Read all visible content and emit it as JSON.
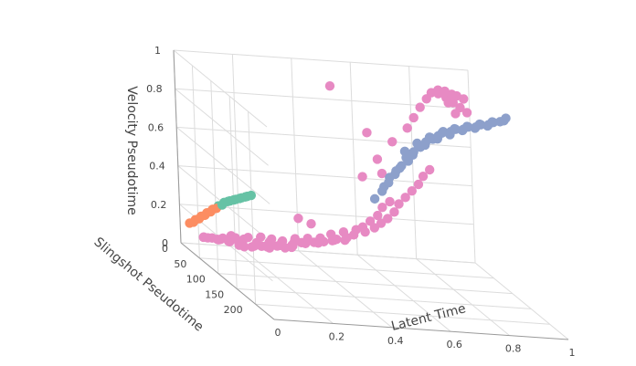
{
  "chart_data": {
    "type": "scatter3d",
    "title": "",
    "axes": {
      "x": {
        "label": "Latent Time",
        "range": [
          0,
          1
        ],
        "ticks": [
          "0",
          "0.2",
          "0.4",
          "0.6",
          "0.8",
          "1"
        ]
      },
      "y": {
        "label": "Slingshot Pseudotime",
        "range": [
          0,
          250
        ],
        "ticks": [
          "0",
          "50",
          "100",
          "150",
          "200"
        ]
      },
      "z": {
        "label": "Velocity Pseudotime",
        "range": [
          0,
          1
        ],
        "ticks": [
          "0",
          "0.2",
          "0.4",
          "0.6",
          "0.8",
          "1"
        ]
      }
    },
    "grid": true,
    "legend": "none",
    "series": [
      {
        "color": "#e78ac3",
        "points": [
          [
            0.12,
            0.05,
            0.05
          ],
          [
            0.15,
            0.04,
            0.04
          ],
          [
            0.18,
            0.06,
            0.03
          ],
          [
            0.2,
            0.05,
            0.02
          ],
          [
            0.22,
            0.07,
            0.03
          ],
          [
            0.25,
            0.08,
            0.04
          ],
          [
            0.28,
            0.07,
            0.03
          ],
          [
            0.3,
            0.09,
            0.05
          ],
          [
            0.33,
            0.08,
            0.04
          ],
          [
            0.35,
            0.1,
            0.06
          ],
          [
            0.1,
            0.08,
            0.06
          ],
          [
            0.14,
            0.1,
            0.07
          ],
          [
            0.17,
            0.09,
            0.05
          ],
          [
            0.22,
            0.12,
            0.06
          ],
          [
            0.26,
            0.11,
            0.05
          ],
          [
            0.3,
            0.13,
            0.07
          ],
          [
            0.34,
            0.12,
            0.06
          ],
          [
            0.38,
            0.1,
            0.08
          ],
          [
            0.42,
            0.11,
            0.09
          ],
          [
            0.45,
            0.12,
            0.1
          ],
          [
            0.48,
            0.14,
            0.12
          ],
          [
            0.52,
            0.15,
            0.14
          ],
          [
            0.55,
            0.13,
            0.15
          ],
          [
            0.58,
            0.16,
            0.18
          ],
          [
            0.5,
            0.1,
            0.11
          ],
          [
            0.44,
            0.09,
            0.08
          ],
          [
            0.4,
            0.08,
            0.07
          ],
          [
            0.36,
            0.06,
            0.05
          ],
          [
            0.32,
            0.05,
            0.04
          ],
          [
            0.28,
            0.04,
            0.03
          ],
          [
            0.24,
            0.03,
            0.02
          ],
          [
            0.2,
            0.02,
            0.02
          ],
          [
            0.16,
            0.02,
            0.03
          ],
          [
            0.12,
            0.03,
            0.04
          ],
          [
            0.08,
            0.04,
            0.05
          ],
          [
            0.06,
            0.06,
            0.06
          ],
          [
            0.05,
            0.09,
            0.07
          ],
          [
            0.07,
            0.12,
            0.08
          ],
          [
            0.1,
            0.14,
            0.09
          ],
          [
            0.14,
            0.15,
            0.1
          ],
          [
            0.18,
            0.16,
            0.11
          ],
          [
            0.22,
            0.17,
            0.12
          ],
          [
            0.26,
            0.16,
            0.11
          ],
          [
            0.3,
            0.15,
            0.1
          ],
          [
            0.34,
            0.16,
            0.12
          ],
          [
            0.38,
            0.17,
            0.13
          ],
          [
            0.42,
            0.18,
            0.14
          ],
          [
            0.46,
            0.17,
            0.16
          ],
          [
            0.5,
            0.18,
            0.18
          ],
          [
            0.54,
            0.19,
            0.2
          ],
          [
            0.6,
            0.2,
            0.22
          ],
          [
            0.62,
            0.21,
            0.25
          ],
          [
            0.64,
            0.22,
            0.28
          ],
          [
            0.66,
            0.23,
            0.32
          ],
          [
            0.68,
            0.22,
            0.36
          ],
          [
            0.7,
            0.23,
            0.4
          ],
          [
            0.72,
            0.24,
            0.44
          ],
          [
            0.74,
            0.25,
            0.48
          ],
          [
            0.76,
            0.24,
            0.52
          ],
          [
            0.78,
            0.25,
            0.56
          ],
          [
            0.56,
            0.2,
            0.22
          ],
          [
            0.58,
            0.22,
            0.26
          ],
          [
            0.6,
            0.24,
            0.3
          ],
          [
            0.62,
            0.23,
            0.34
          ],
          [
            0.64,
            0.25,
            0.38
          ],
          [
            0.55,
            0.25,
            0.5
          ],
          [
            0.6,
            0.26,
            0.6
          ],
          [
            0.65,
            0.27,
            0.7
          ],
          [
            0.7,
            0.28,
            0.78
          ],
          [
            0.72,
            0.29,
            0.84
          ],
          [
            0.74,
            0.3,
            0.9
          ],
          [
            0.76,
            0.31,
            0.95
          ],
          [
            0.78,
            0.3,
            0.98
          ],
          [
            0.8,
            0.31,
            1.0
          ],
          [
            0.82,
            0.32,
            1.0
          ],
          [
            0.84,
            0.33,
            0.99
          ],
          [
            0.86,
            0.32,
            0.98
          ],
          [
            0.88,
            0.33,
            0.97
          ],
          [
            0.83,
            0.3,
            0.96
          ],
          [
            0.85,
            0.31,
            0.94
          ],
          [
            0.87,
            0.32,
            0.92
          ],
          [
            0.89,
            0.33,
            0.9
          ],
          [
            0.86,
            0.3,
            0.88
          ],
          [
            0.84,
            0.29,
            0.93
          ],
          [
            0.81,
            0.28,
            0.97
          ],
          [
            0.46,
            0.22,
            0.95
          ],
          [
            0.58,
            0.22,
            0.72
          ],
          [
            0.62,
            0.24,
            0.52
          ],
          [
            0.4,
            0.15,
            0.2
          ],
          [
            0.36,
            0.14,
            0.22
          ],
          [
            0.15,
            0.07,
            0.08
          ],
          [
            0.19,
            0.08,
            0.07
          ],
          [
            0.23,
            0.09,
            0.06
          ],
          [
            0.27,
            0.1,
            0.07
          ],
          [
            0.31,
            0.11,
            0.08
          ],
          [
            0.35,
            0.12,
            0.09
          ],
          [
            0.39,
            0.13,
            0.1
          ],
          [
            0.43,
            0.14,
            0.11
          ],
          [
            0.47,
            0.15,
            0.12
          ],
          [
            0.51,
            0.16,
            0.13
          ]
        ]
      },
      {
        "color": "#8da0cb",
        "points": [
          [
            0.6,
            0.3,
            0.45
          ],
          [
            0.62,
            0.31,
            0.5
          ],
          [
            0.64,
            0.32,
            0.55
          ],
          [
            0.66,
            0.33,
            0.6
          ],
          [
            0.68,
            0.32,
            0.64
          ],
          [
            0.7,
            0.34,
            0.68
          ],
          [
            0.72,
            0.33,
            0.71
          ],
          [
            0.74,
            0.35,
            0.74
          ],
          [
            0.76,
            0.34,
            0.76
          ],
          [
            0.78,
            0.36,
            0.78
          ],
          [
            0.8,
            0.35,
            0.8
          ],
          [
            0.82,
            0.37,
            0.81
          ],
          [
            0.84,
            0.36,
            0.82
          ],
          [
            0.86,
            0.38,
            0.83
          ],
          [
            0.88,
            0.37,
            0.84
          ],
          [
            0.9,
            0.39,
            0.85
          ],
          [
            0.92,
            0.38,
            0.86
          ],
          [
            0.94,
            0.4,
            0.87
          ],
          [
            0.96,
            0.39,
            0.88
          ],
          [
            0.98,
            0.4,
            0.89
          ],
          [
            0.99,
            0.41,
            0.9
          ],
          [
            1.0,
            0.4,
            0.91
          ],
          [
            0.95,
            0.41,
            0.89
          ],
          [
            0.91,
            0.4,
            0.87
          ],
          [
            0.87,
            0.39,
            0.85
          ],
          [
            0.83,
            0.38,
            0.83
          ],
          [
            0.79,
            0.37,
            0.8
          ],
          [
            0.75,
            0.36,
            0.77
          ],
          [
            0.71,
            0.35,
            0.73
          ],
          [
            0.67,
            0.34,
            0.68
          ],
          [
            0.65,
            0.3,
            0.56
          ],
          [
            0.63,
            0.29,
            0.52
          ],
          [
            0.69,
            0.31,
            0.62
          ],
          [
            0.73,
            0.32,
            0.7
          ],
          [
            0.77,
            0.33,
            0.75
          ],
          [
            0.58,
            0.28,
            0.4
          ],
          [
            0.61,
            0.29,
            0.47
          ],
          [
            0.66,
            0.31,
            0.58
          ],
          [
            0.7,
            0.33,
            0.66
          ],
          [
            0.74,
            0.34,
            0.72
          ],
          [
            0.78,
            0.35,
            0.76
          ],
          [
            0.82,
            0.36,
            0.79
          ],
          [
            0.86,
            0.37,
            0.82
          ],
          [
            0.9,
            0.38,
            0.84
          ],
          [
            0.94,
            0.39,
            0.86
          ]
        ]
      },
      {
        "color": "#fc8d62",
        "points": [
          [
            0.02,
            0.04,
            0.12
          ],
          [
            0.03,
            0.05,
            0.13
          ],
          [
            0.04,
            0.04,
            0.14
          ],
          [
            0.05,
            0.05,
            0.15
          ],
          [
            0.06,
            0.04,
            0.16
          ],
          [
            0.07,
            0.05,
            0.17
          ],
          [
            0.08,
            0.04,
            0.18
          ],
          [
            0.09,
            0.05,
            0.19
          ],
          [
            0.1,
            0.04,
            0.2
          ],
          [
            0.11,
            0.05,
            0.21
          ]
        ]
      },
      {
        "color": "#66c2a5",
        "points": [
          [
            0.12,
            0.04,
            0.22
          ],
          [
            0.13,
            0.05,
            0.23
          ],
          [
            0.14,
            0.04,
            0.24
          ],
          [
            0.15,
            0.05,
            0.25
          ],
          [
            0.16,
            0.04,
            0.25
          ],
          [
            0.17,
            0.05,
            0.26
          ],
          [
            0.18,
            0.04,
            0.26
          ],
          [
            0.19,
            0.05,
            0.27
          ],
          [
            0.2,
            0.04,
            0.27
          ],
          [
            0.21,
            0.05,
            0.28
          ],
          [
            0.22,
            0.04,
            0.28
          ],
          [
            0.23,
            0.05,
            0.29
          ]
        ]
      }
    ]
  }
}
